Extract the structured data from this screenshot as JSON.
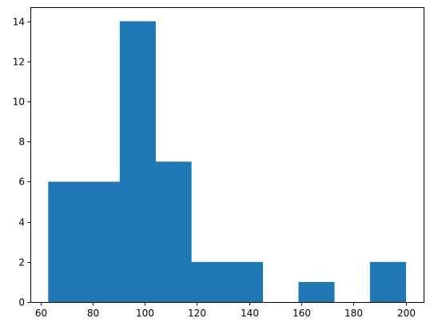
{
  "chart_data": {
    "type": "bar",
    "title": "",
    "xlabel": "",
    "ylabel": "",
    "bin_edges": [
      63,
      76.7,
      90.4,
      104.1,
      117.8,
      131.5,
      145.2,
      158.9,
      172.6,
      186.3,
      200
    ],
    "counts": [
      6,
      6,
      14,
      7,
      2,
      2,
      0,
      1,
      0,
      2
    ],
    "xlim": [
      56.15,
      206.85
    ],
    "ylim": [
      0,
      14.7
    ],
    "x_ticks": [
      60,
      80,
      100,
      120,
      140,
      160,
      180,
      200
    ],
    "y_ticks": [
      0,
      2,
      4,
      6,
      8,
      10,
      12,
      14
    ],
    "x_tick_labels": [
      "60",
      "80",
      "100",
      "120",
      "140",
      "160",
      "180",
      "200"
    ],
    "y_tick_labels": [
      "0",
      "2",
      "4",
      "6",
      "8",
      "10",
      "12",
      "14"
    ],
    "bar_color": "#1f77b4",
    "grid": false,
    "legend": "none"
  }
}
